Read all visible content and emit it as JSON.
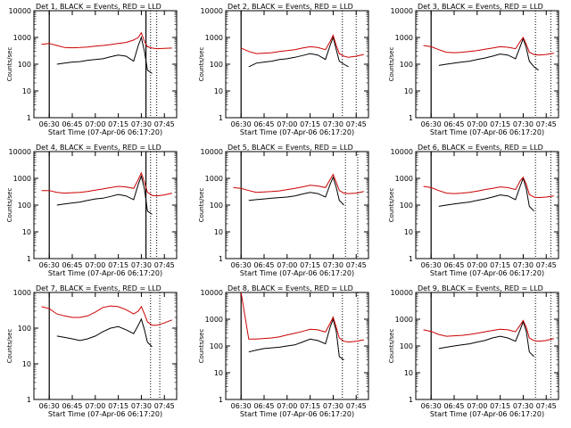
{
  "figure": {
    "series_colors": {
      "events": "#000000",
      "lld": "#cc0000"
    },
    "ylabel": "Counts/sec",
    "xlabel": "Start Time (07-Apr-06 06:17:20)"
  },
  "chart_data": [
    {
      "type": "line",
      "title": "Det 1, BLACK = Events, RED = LLD",
      "xlabel": "Start Time (07-Apr-06 06:17:20)",
      "ylabel": "Counts/sec",
      "y_scale": "log",
      "ylim": [
        1,
        10000
      ],
      "xlim": [
        "06:20",
        "07:53"
      ],
      "x_ticks": [
        "06:30",
        "06:45",
        "07:00",
        "07:15",
        "07:30",
        "07:45"
      ],
      "y_ticks": [
        "1",
        "10",
        "100",
        "1000",
        "10000"
      ],
      "markers": {
        "solid": [
          "06:30",
          "07:33"
        ],
        "dotted": [
          "07:36",
          "07:40"
        ]
      },
      "x": [
        "06:25",
        "06:30",
        "06:35",
        "06:40",
        "06:45",
        "06:50",
        "06:55",
        "07:00",
        "07:05",
        "07:10",
        "07:15",
        "07:20",
        "07:25",
        "07:28",
        "07:30",
        "07:32",
        "07:34",
        "07:37",
        "07:40",
        "07:45",
        "07:50"
      ],
      "series": [
        {
          "values": [
            null,
            null,
            100,
            110,
            120,
            125,
            140,
            150,
            160,
            190,
            220,
            200,
            130,
            500,
            1000,
            300,
            60,
            45,
            null,
            null,
            null
          ]
        },
        {
          "values": [
            550,
            600,
            500,
            420,
            410,
            420,
            440,
            470,
            500,
            540,
            600,
            650,
            800,
            1000,
            1500,
            700,
            450,
            400,
            380,
            390,
            400
          ]
        }
      ]
    },
    {
      "type": "line",
      "title": "Det 2, BLACK = Events, RED = LLD",
      "xlabel": "Start Time (07-Apr-06 06:17:20)",
      "ylabel": "Counts/sec",
      "y_scale": "log",
      "ylim": [
        1,
        10000
      ],
      "xlim": [
        "06:20",
        "07:53"
      ],
      "x_ticks": [
        "06:30",
        "06:45",
        "07:00",
        "07:15",
        "07:30",
        "07:45"
      ],
      "y_ticks": [
        "1",
        "10",
        "100",
        "1000",
        "10000"
      ],
      "markers": {
        "solid": [
          "06:30"
        ],
        "dotted": [
          "07:36",
          "07:45"
        ]
      },
      "x": [
        "06:25",
        "06:30",
        "06:35",
        "06:40",
        "06:45",
        "06:50",
        "06:55",
        "07:00",
        "07:05",
        "07:10",
        "07:15",
        "07:20",
        "07:25",
        "07:28",
        "07:30",
        "07:32",
        "07:34",
        "07:37",
        "07:40",
        "07:45",
        "07:50"
      ],
      "series": [
        {
          "values": [
            null,
            null,
            80,
            110,
            120,
            130,
            150,
            160,
            180,
            210,
            250,
            220,
            150,
            500,
            1000,
            350,
            130,
            100,
            80,
            null,
            null
          ]
        },
        {
          "values": [
            null,
            400,
            300,
            250,
            260,
            270,
            300,
            320,
            350,
            400,
            450,
            420,
            350,
            700,
            1200,
            500,
            250,
            200,
            180,
            200,
            230
          ]
        }
      ]
    },
    {
      "type": "line",
      "title": "Det 3, BLACK = Events, RED = LLD",
      "xlabel": "Start Time (07-Apr-06 06:17:20)",
      "ylabel": "Counts/sec",
      "y_scale": "log",
      "ylim": [
        1,
        10000
      ],
      "xlim": [
        "06:20",
        "07:53"
      ],
      "x_ticks": [
        "06:30",
        "06:45",
        "07:00",
        "07:15",
        "07:30",
        "07:45"
      ],
      "y_ticks": [
        "1",
        "10",
        "100",
        "1000",
        "10000"
      ],
      "markers": {
        "solid": [
          "06:30"
        ],
        "dotted": [
          "07:38",
          "07:48"
        ]
      },
      "x": [
        "06:25",
        "06:30",
        "06:35",
        "06:40",
        "06:45",
        "06:50",
        "06:55",
        "07:00",
        "07:05",
        "07:10",
        "07:15",
        "07:20",
        "07:25",
        "07:28",
        "07:30",
        "07:32",
        "07:34",
        "07:37",
        "07:40",
        "07:45",
        "07:50"
      ],
      "series": [
        {
          "values": [
            null,
            null,
            90,
            100,
            110,
            120,
            130,
            150,
            170,
            200,
            240,
            220,
            160,
            450,
            900,
            400,
            130,
            80,
            60,
            null,
            null
          ]
        },
        {
          "values": [
            500,
            450,
            350,
            280,
            270,
            280,
            300,
            320,
            360,
            400,
            450,
            430,
            380,
            700,
            1000,
            550,
            280,
            230,
            220,
            230,
            260
          ]
        }
      ]
    },
    {
      "type": "line",
      "title": "Det 4, BLACK = Events, RED = LLD",
      "xlabel": "Start Time (07-Apr-06 06:17:20)",
      "ylabel": "Counts/sec",
      "y_scale": "log",
      "ylim": [
        1,
        10000
      ],
      "xlim": [
        "06:20",
        "07:53"
      ],
      "x_ticks": [
        "06:30",
        "06:45",
        "07:00",
        "07:15",
        "07:30",
        "07:45"
      ],
      "y_ticks": [
        "1",
        "10",
        "100",
        "1000",
        "10000"
      ],
      "markers": {
        "solid": [
          "06:30",
          "07:33"
        ],
        "dotted": [
          "07:36",
          "07:40"
        ]
      },
      "x": [
        "06:25",
        "06:30",
        "06:35",
        "06:40",
        "06:45",
        "06:50",
        "06:55",
        "07:00",
        "07:05",
        "07:10",
        "07:15",
        "07:20",
        "07:25",
        "07:28",
        "07:30",
        "07:32",
        "07:34",
        "07:37",
        "07:40",
        "07:45",
        "07:50"
      ],
      "series": [
        {
          "values": [
            null,
            null,
            100,
            110,
            120,
            130,
            150,
            170,
            180,
            210,
            250,
            220,
            160,
            600,
            1200,
            400,
            60,
            45,
            null,
            null,
            null
          ]
        },
        {
          "values": [
            350,
            350,
            300,
            280,
            290,
            300,
            320,
            360,
            400,
            450,
            500,
            480,
            420,
            900,
            1600,
            700,
            300,
            230,
            220,
            240,
            280
          ]
        }
      ]
    },
    {
      "type": "line",
      "title": "Det 5, BLACK = Events, RED = LLD",
      "xlabel": "Start Time (07-Apr-06 06:17:20)",
      "ylabel": "Counts/sec",
      "y_scale": "log",
      "ylim": [
        1,
        10000
      ],
      "xlim": [
        "06:20",
        "07:53"
      ],
      "x_ticks": [
        "06:30",
        "06:45",
        "07:00",
        "07:15",
        "07:30",
        "07:45"
      ],
      "y_ticks": [
        "1",
        "10",
        "100",
        "1000",
        "10000"
      ],
      "markers": {
        "solid": [
          "06:30"
        ],
        "dotted": [
          "07:38",
          "07:46"
        ]
      },
      "x": [
        "06:25",
        "06:30",
        "06:35",
        "06:40",
        "06:45",
        "06:50",
        "06:55",
        "07:00",
        "07:05",
        "07:10",
        "07:15",
        "07:20",
        "07:25",
        "07:28",
        "07:30",
        "07:32",
        "07:34",
        "07:37",
        "07:40",
        "07:45",
        "07:50"
      ],
      "series": [
        {
          "values": [
            null,
            null,
            150,
            160,
            170,
            180,
            190,
            200,
            220,
            260,
            300,
            270,
            200,
            600,
            1100,
            450,
            150,
            100,
            null,
            null,
            null
          ]
        },
        {
          "values": [
            450,
            420,
            350,
            300,
            310,
            320,
            340,
            380,
            420,
            480,
            550,
            520,
            450,
            900,
            1400,
            700,
            350,
            280,
            270,
            280,
            320
          ]
        }
      ]
    },
    {
      "type": "line",
      "title": "Det 6, BLACK = Events, RED = LLD",
      "xlabel": "Start Time (07-Apr-06 06:17:20)",
      "ylabel": "Counts/sec",
      "y_scale": "log",
      "ylim": [
        1,
        10000
      ],
      "xlim": [
        "06:20",
        "07:53"
      ],
      "x_ticks": [
        "06:30",
        "06:45",
        "07:00",
        "07:15",
        "07:30",
        "07:45"
      ],
      "y_ticks": [
        "1",
        "10",
        "100",
        "1000",
        "10000"
      ],
      "markers": {
        "solid": [
          "06:30"
        ],
        "dotted": [
          "07:38",
          "07:48"
        ]
      },
      "x": [
        "06:25",
        "06:30",
        "06:35",
        "06:40",
        "06:45",
        "06:50",
        "06:55",
        "07:00",
        "07:05",
        "07:10",
        "07:15",
        "07:20",
        "07:25",
        "07:28",
        "07:30",
        "07:32",
        "07:34",
        "07:37",
        "07:40",
        "07:45",
        "07:50"
      ],
      "series": [
        {
          "values": [
            null,
            null,
            90,
            100,
            110,
            120,
            130,
            150,
            170,
            200,
            240,
            220,
            160,
            500,
            1000,
            400,
            90,
            60,
            null,
            null,
            null
          ]
        },
        {
          "values": [
            500,
            450,
            350,
            280,
            270,
            280,
            300,
            330,
            380,
            420,
            480,
            450,
            380,
            800,
            1100,
            600,
            250,
            200,
            190,
            200,
            220
          ]
        }
      ]
    },
    {
      "type": "line",
      "title": "Det 7, BLACK = Events, RED = LLD",
      "xlabel": "Start Time (07-Apr-06 06:17:20)",
      "ylabel": "Counts/sec",
      "y_scale": "log",
      "ylim": [
        1,
        1000
      ],
      "xlim": [
        "06:20",
        "07:53"
      ],
      "x_ticks": [
        "06:30",
        "06:45",
        "07:00",
        "07:15",
        "07:30",
        "07:45"
      ],
      "y_ticks": [
        "1",
        "10",
        "100",
        "1000"
      ],
      "markers": {
        "solid": [
          "06:30"
        ],
        "dotted": [
          "07:36",
          "07:42"
        ]
      },
      "x": [
        "06:25",
        "06:30",
        "06:35",
        "06:40",
        "06:45",
        "06:50",
        "06:55",
        "07:00",
        "07:05",
        "07:10",
        "07:15",
        "07:20",
        "07:25",
        "07:28",
        "07:30",
        "07:32",
        "07:34",
        "07:37",
        "07:40",
        "07:45",
        "07:50"
      ],
      "series": [
        {
          "values": [
            null,
            null,
            60,
            55,
            50,
            45,
            50,
            60,
            80,
            100,
            110,
            90,
            70,
            120,
            180,
            90,
            40,
            30,
            null,
            null,
            null
          ]
        },
        {
          "values": [
            400,
            350,
            250,
            220,
            200,
            200,
            220,
            280,
            380,
            420,
            400,
            330,
            250,
            300,
            400,
            250,
            150,
            120,
            120,
            140,
            170
          ]
        }
      ]
    },
    {
      "type": "line",
      "title": "Det 8, BLACK = Events, RED = LLD",
      "xlabel": "Start Time (07-Apr-06 06:17:20)",
      "ylabel": "Counts/sec",
      "y_scale": "log",
      "ylim": [
        1,
        10000
      ],
      "xlim": [
        "06:20",
        "07:53"
      ],
      "x_ticks": [
        "06:30",
        "06:45",
        "07:00",
        "07:15",
        "07:30",
        "07:45"
      ],
      "y_ticks": [
        "1",
        "10",
        "100",
        "1000",
        "10000"
      ],
      "markers": {
        "solid": [
          "06:30"
        ],
        "dotted": [
          "07:36",
          "07:46"
        ]
      },
      "x": [
        "06:25",
        "06:30",
        "06:35",
        "06:40",
        "06:45",
        "06:50",
        "06:55",
        "07:00",
        "07:05",
        "07:10",
        "07:15",
        "07:20",
        "07:25",
        "07:28",
        "07:30",
        "07:32",
        "07:34",
        "07:37",
        "07:40",
        "07:45",
        "07:50"
      ],
      "series": [
        {
          "values": [
            null,
            null,
            60,
            70,
            80,
            85,
            90,
            100,
            110,
            140,
            180,
            160,
            120,
            500,
            1000,
            350,
            40,
            30,
            null,
            null,
            null
          ]
        },
        {
          "values": [
            null,
            10000,
            180,
            180,
            190,
            200,
            220,
            260,
            300,
            350,
            420,
            400,
            330,
            700,
            1200,
            500,
            200,
            150,
            140,
            150,
            170
          ]
        }
      ]
    },
    {
      "type": "line",
      "title": "Det 9, BLACK = Events, RED = LLD",
      "xlabel": "Start Time (07-Apr-06 06:17:20)",
      "ylabel": "Counts/sec",
      "y_scale": "log",
      "ylim": [
        1,
        10000
      ],
      "xlim": [
        "06:20",
        "07:53"
      ],
      "x_ticks": [
        "06:30",
        "06:45",
        "07:00",
        "07:15",
        "07:30",
        "07:45"
      ],
      "y_ticks": [
        "1",
        "10",
        "100",
        "1000",
        "10000"
      ],
      "markers": {
        "solid": [
          "06:30"
        ],
        "dotted": [
          "07:38",
          "07:48"
        ]
      },
      "x": [
        "06:25",
        "06:30",
        "06:35",
        "06:40",
        "06:45",
        "06:50",
        "06:55",
        "07:00",
        "07:05",
        "07:10",
        "07:15",
        "07:20",
        "07:25",
        "07:28",
        "07:30",
        "07:32",
        "07:34",
        "07:37",
        "07:40",
        "07:45",
        "07:50"
      ],
      "series": [
        {
          "values": [
            null,
            null,
            80,
            90,
            100,
            110,
            120,
            140,
            160,
            200,
            230,
            200,
            150,
            400,
            800,
            350,
            60,
            40,
            null,
            null,
            null
          ]
        },
        {
          "values": [
            400,
            350,
            270,
            230,
            240,
            250,
            270,
            300,
            340,
            380,
            420,
            400,
            340,
            600,
            900,
            500,
            200,
            160,
            150,
            160,
            190
          ]
        }
      ]
    }
  ]
}
